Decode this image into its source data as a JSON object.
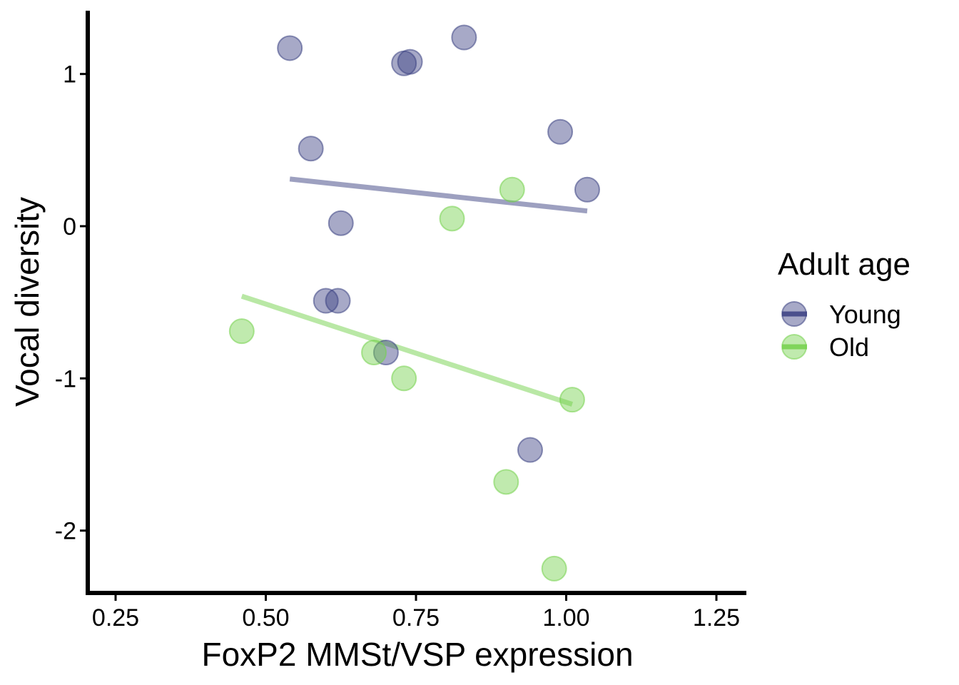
{
  "chart_data": {
    "type": "scatter",
    "xlabel": "FoxP2 MMSt/VSP expression",
    "ylabel": "Vocal diversity",
    "xlim": [
      0.2,
      1.3
    ],
    "ylim": [
      -2.4,
      1.4
    ],
    "xticks": [
      0.25,
      0.5,
      0.75,
      1.0,
      1.25
    ],
    "xtick_labels": [
      "0.25",
      "0.50",
      "0.75",
      "1.00",
      "1.25"
    ],
    "yticks": [
      1,
      0,
      -1,
      -2
    ],
    "ytick_labels": [
      "1",
      "0",
      "-1",
      "-2"
    ],
    "grid": false,
    "legend": {
      "title": "Adult age",
      "position": "right"
    },
    "series": [
      {
        "name": "Young",
        "color": "#3b4182",
        "points": [
          {
            "x": 0.54,
            "y": 1.17
          },
          {
            "x": 0.73,
            "y": 1.07
          },
          {
            "x": 0.74,
            "y": 1.08
          },
          {
            "x": 0.83,
            "y": 1.24
          },
          {
            "x": 0.575,
            "y": 0.51
          },
          {
            "x": 0.99,
            "y": 0.62
          },
          {
            "x": 1.035,
            "y": 0.24
          },
          {
            "x": 0.625,
            "y": 0.02
          },
          {
            "x": 0.6,
            "y": -0.49
          },
          {
            "x": 0.62,
            "y": -0.49
          },
          {
            "x": 0.7,
            "y": -0.83
          },
          {
            "x": 0.94,
            "y": -1.47
          }
        ],
        "fit": {
          "x": [
            0.54,
            1.035
          ],
          "y": [
            0.31,
            0.1
          ]
        }
      },
      {
        "name": "Old",
        "color": "#74d14c",
        "points": [
          {
            "x": 0.91,
            "y": 0.24
          },
          {
            "x": 0.81,
            "y": 0.05
          },
          {
            "x": 0.46,
            "y": -0.69
          },
          {
            "x": 0.68,
            "y": -0.83
          },
          {
            "x": 0.73,
            "y": -1.0
          },
          {
            "x": 1.01,
            "y": -1.14
          },
          {
            "x": 0.9,
            "y": -1.68
          },
          {
            "x": 0.98,
            "y": -2.25
          }
        ],
        "fit": {
          "x": [
            0.46,
            1.01
          ],
          "y": [
            -0.46,
            -1.17
          ]
        }
      }
    ]
  }
}
